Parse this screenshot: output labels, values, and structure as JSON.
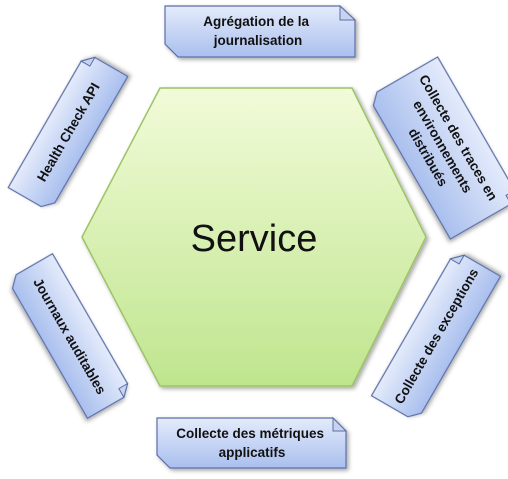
{
  "center": {
    "label": "Service",
    "fill_top": "#f2fbd9",
    "fill_bottom": "#bfe58e",
    "stroke": "#9cc466"
  },
  "card_style": {
    "fill_top": "#e4ebfb",
    "fill_bottom": "#a9bfee",
    "stroke": "#5b6fa8"
  },
  "cards": [
    {
      "id": "top",
      "lines": [
        "Agrégation de la",
        "journalisation"
      ]
    },
    {
      "id": "top-right",
      "lines": [
        "Collecte des traces en",
        "environnements",
        "distribués"
      ]
    },
    {
      "id": "bottom-right",
      "lines": [
        "Collecte des exceptions"
      ]
    },
    {
      "id": "bottom",
      "lines": [
        "Collecte des métriques",
        "applicatifs"
      ]
    },
    {
      "id": "bottom-left",
      "lines": [
        "Journaux auditables"
      ]
    },
    {
      "id": "top-left",
      "lines": [
        "Health Check API"
      ]
    }
  ]
}
